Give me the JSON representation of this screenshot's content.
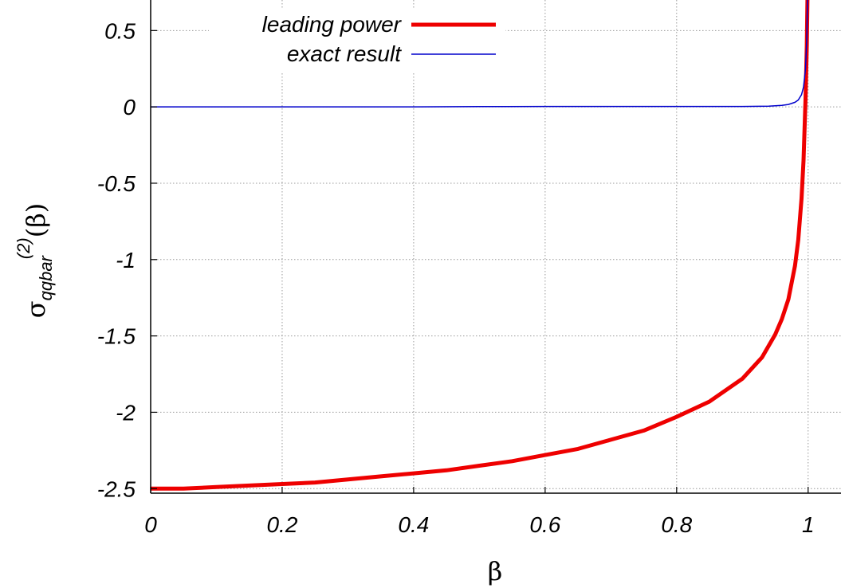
{
  "chart_data": {
    "type": "line",
    "xlabel": "β",
    "ylabel": {
      "symbol": "σ",
      "subscript": "qqbar",
      "superscript": "(2)",
      "argument": "(β)"
    },
    "xlim": [
      0,
      1.05
    ],
    "ylim": [
      -2.53,
      0.7
    ],
    "x_ticks": [
      0,
      0.2,
      0.4,
      0.6,
      0.8,
      1
    ],
    "x_tick_labels": [
      "0",
      "0.2",
      "0.4",
      "0.6",
      "0.8",
      "1"
    ],
    "y_ticks": [
      0.5,
      0,
      -0.5,
      -1,
      -1.5,
      -2,
      -2.5
    ],
    "y_tick_labels": [
      "0.5",
      "0",
      "-0.5",
      "-1",
      "-1.5",
      "-2",
      "-2.5"
    ],
    "grid": true,
    "legend_position": "top-left",
    "series": [
      {
        "name": "leading power",
        "color": "#ee0000",
        "x": [
          0,
          0.05,
          0.1,
          0.15,
          0.2,
          0.25,
          0.3,
          0.35,
          0.4,
          0.45,
          0.5,
          0.55,
          0.6,
          0.65,
          0.7,
          0.75,
          0.8,
          0.85,
          0.9,
          0.93,
          0.95,
          0.96,
          0.97,
          0.98,
          0.985,
          0.99,
          0.993,
          0.996,
          0.998,
          0.999
        ],
        "y": [
          -2.5,
          -2.5,
          -2.49,
          -2.48,
          -2.47,
          -2.46,
          -2.44,
          -2.42,
          -2.4,
          -2.38,
          -2.35,
          -2.32,
          -2.28,
          -2.24,
          -2.18,
          -2.12,
          -2.03,
          -1.93,
          -1.78,
          -1.64,
          -1.49,
          -1.39,
          -1.26,
          -1.04,
          -0.87,
          -0.6,
          -0.35,
          0.05,
          0.4,
          0.7
        ]
      },
      {
        "name": "exact result",
        "color": "#0000cc",
        "x": [
          0,
          0.1,
          0.2,
          0.3,
          0.4,
          0.5,
          0.6,
          0.7,
          0.8,
          0.9,
          0.94,
          0.96,
          0.97,
          0.98,
          0.985,
          0.99,
          0.993,
          0.996,
          0.998,
          0.999
        ],
        "y": [
          0,
          0,
          0,
          0,
          0,
          0.002,
          0.003,
          0.003,
          0.003,
          0.003,
          0.005,
          0.01,
          0.016,
          0.03,
          0.045,
          0.08,
          0.13,
          0.25,
          0.45,
          0.7
        ]
      }
    ]
  }
}
